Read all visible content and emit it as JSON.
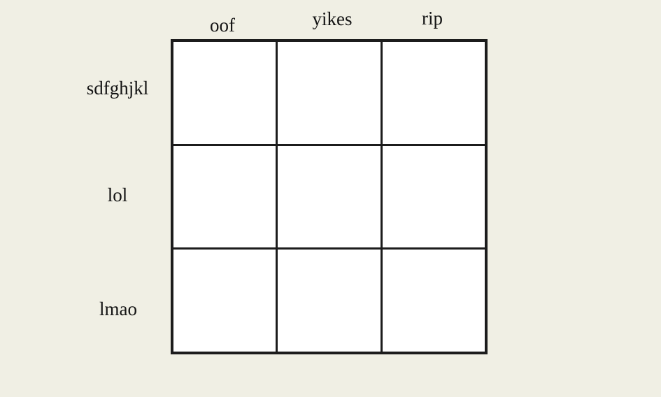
{
  "figure": {
    "background_color": "#f0efe4",
    "line_color": "#1c1c1c",
    "cell_color": "#ffffff",
    "text_color": "#141414"
  },
  "chart_data": {
    "type": "table",
    "columns": [
      "oof",
      "yikes",
      "rip"
    ],
    "rows": [
      "sdfghjkl",
      "lol",
      "lmao"
    ],
    "cells": [
      [
        "",
        "",
        ""
      ],
      [
        "",
        "",
        ""
      ],
      [
        "",
        "",
        ""
      ]
    ],
    "title": "",
    "layout": "3x3 empty grid; column headers above, row labels at left, thick outer border, thin inner grid lines"
  }
}
